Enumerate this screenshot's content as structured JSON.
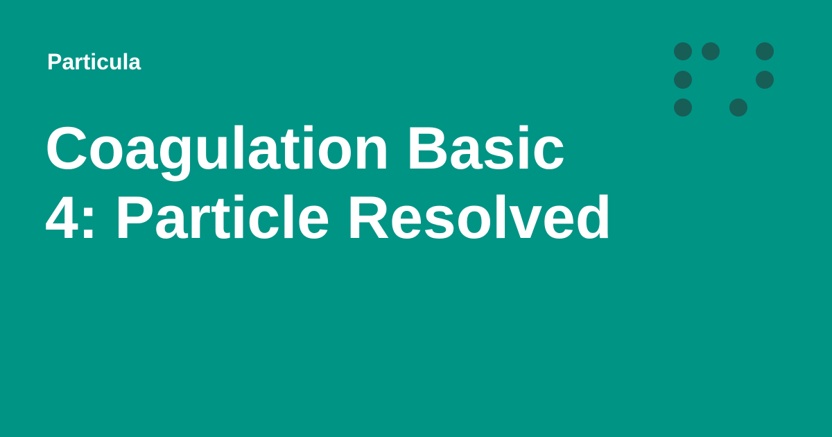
{
  "brand": {
    "name": "Particula"
  },
  "title": {
    "lines": [
      "Coagulation Basic",
      "4: Particle Resolved"
    ]
  },
  "colors": {
    "background": "#009485",
    "text": "#ffffff",
    "logo_dot": "#175e57"
  },
  "logo": {
    "icon": "dot-grid-logo-icon"
  }
}
